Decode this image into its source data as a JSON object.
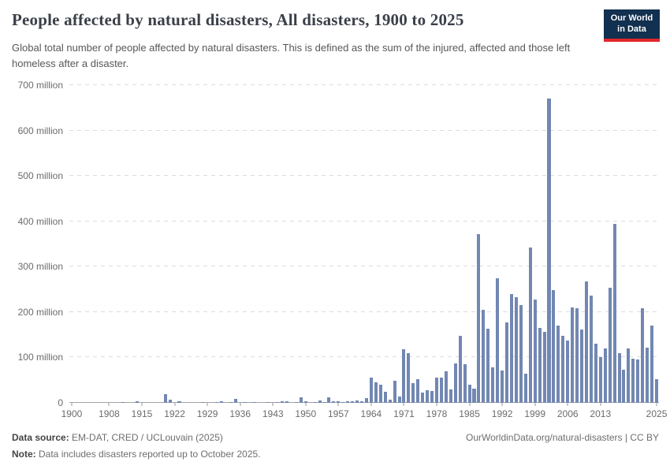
{
  "header": {
    "title": "People affected by natural disasters, All disasters, 1900 to 2025",
    "subtitle": "Global total number of people affected by natural disasters. This is defined as the sum of the injured, affected and those left homeless after a disaster.",
    "logo": {
      "line1": "Our World",
      "line2": "in Data"
    }
  },
  "chart_data": {
    "type": "bar",
    "title": "People affected by natural disasters, All disasters, 1900 to 2025",
    "unit": "million people",
    "year_start": 1900,
    "year_end": 2025,
    "values_million": [
      0,
      0,
      0,
      0,
      0,
      0,
      0,
      0,
      0,
      0,
      0,
      2,
      0,
      0,
      3,
      0,
      0,
      0,
      0,
      0,
      20,
      7,
      0,
      3,
      0,
      0,
      0,
      0,
      1,
      0,
      0,
      1,
      3,
      0,
      1,
      8,
      0,
      2,
      0,
      1,
      0,
      0,
      1,
      0,
      1,
      3,
      4,
      0,
      1,
      12,
      4,
      0,
      1,
      5,
      2,
      13,
      3,
      3,
      2,
      4,
      4,
      5,
      4,
      11,
      55,
      46,
      40,
      25,
      7,
      49,
      14,
      118,
      110,
      44,
      52,
      22,
      28,
      26,
      55,
      55,
      70,
      29,
      87,
      148,
      85,
      40,
      32,
      371,
      205,
      163,
      79,
      274,
      72,
      177,
      240,
      233,
      216,
      64,
      342,
      227,
      165,
      156,
      670,
      249,
      171,
      147,
      137,
      210,
      208,
      162,
      268,
      236,
      131,
      100,
      120,
      253,
      395,
      110,
      73,
      120,
      97,
      95,
      208,
      121,
      171,
      52
    ],
    "ylim": [
      0,
      700
    ],
    "ytick_interval": 100,
    "ytick_labels": [
      "0",
      "100 million",
      "200 million",
      "300 million",
      "400 million",
      "500 million",
      "600 million",
      "700 million"
    ],
    "xtick_labels": [
      1900,
      1908,
      1915,
      1922,
      1929,
      1936,
      1943,
      1950,
      1957,
      1964,
      1971,
      1978,
      1985,
      1992,
      1999,
      2006,
      2013,
      2025
    ],
    "grid": "horizontal-dashed",
    "legend": "none",
    "bar_color": "#7287b2",
    "gridline_color": "#dcdcdc",
    "axis_text_color": "#6b6b6b"
  },
  "brand": {
    "navy": "#12304f",
    "red": "#e2262b"
  },
  "footer": {
    "datasource_label": "Data source:",
    "datasource_value": " EM-DAT, CRED / UCLouvain (2025)",
    "note_label": "Note:",
    "note_value": " Data includes disasters reported up to October 2025.",
    "link": "OurWorldinData.org/natural-disasters | CC BY"
  }
}
